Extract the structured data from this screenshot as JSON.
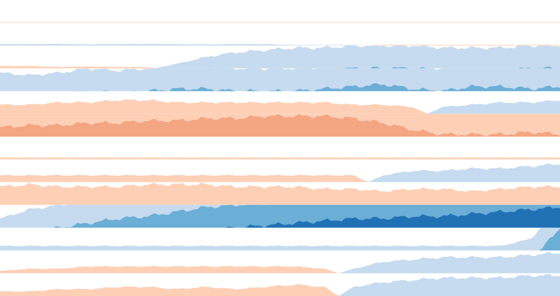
{
  "chart_data": {
    "type": "area",
    "variant": "horizon",
    "title": "",
    "xlabel": "",
    "ylabel": "",
    "bands": 3,
    "band_size": 1,
    "grid": false,
    "legend": "none",
    "colors": {
      "positive": [
        "#c6dbef",
        "#6baed6",
        "#2171b5"
      ],
      "negative": [
        "#fdd0b6",
        "#f4a582",
        "#d6604d"
      ]
    },
    "x_points": 20,
    "series": [
      {
        "values": [
          -0.03,
          -0.03,
          -0.03,
          -0.03,
          -0.03,
          -0.03,
          -0.03,
          -0.03,
          -0.03,
          -0.03,
          -0.03,
          -0.03,
          -0.03,
          -0.03,
          -0.03,
          -0.03,
          -0.03,
          -0.03,
          -0.03,
          -0.03
        ]
      },
      {
        "values": [
          0.06,
          0.06,
          0.07,
          0.05,
          0.06,
          0.07,
          0.06,
          0.05,
          0.06,
          0.06,
          0.02,
          0.02,
          0.02,
          -0.03,
          -0.03,
          -0.03,
          -0.03,
          -0.03,
          -0.03,
          -0.03
        ]
      },
      {
        "values": [
          -0.1,
          -0.1,
          -0.06,
          -0.08,
          -0.06,
          -0.06,
          0.2,
          0.5,
          0.7,
          0.8,
          0.9,
          0.9,
          1.0,
          1.0,
          1.0,
          0.9,
          0.9,
          0.9,
          1.0,
          1.0
        ]
      },
      {
        "values": [
          0.8,
          0.7,
          0.8,
          1.0,
          0.9,
          1.0,
          1.1,
          1.1,
          1.0,
          1.0,
          1.0,
          1.1,
          1.2,
          1.3,
          1.1,
          1.0,
          1.2,
          1.2,
          1.1,
          1.2
        ]
      },
      {
        "values": [
          -0.4,
          -0.4,
          -0.5,
          -0.5,
          -0.6,
          -0.6,
          -0.5,
          -0.5,
          -0.5,
          -0.5,
          -0.5,
          -0.5,
          -0.4,
          -0.4,
          -0.3,
          0.3,
          0.4,
          0.5,
          0.5,
          0.6
        ]
      },
      {
        "values": [
          -1.4,
          -1.5,
          -1.5,
          -1.6,
          -1.6,
          -1.7,
          -1.7,
          -1.8,
          -1.8,
          -1.9,
          -1.9,
          -1.9,
          -1.8,
          -1.6,
          -1.3,
          -1.1,
          -1.1,
          -1.1,
          -1.2,
          -1.1
        ]
      },
      {
        "values": [
          -0.08,
          -0.08,
          -0.08,
          -0.08,
          -0.08,
          -0.08,
          -0.08,
          -0.08,
          -0.08,
          -0.08,
          -0.08,
          -0.08,
          -0.08,
          -0.08,
          -0.08,
          -0.08,
          -0.08,
          -0.08,
          -0.08,
          -0.08
        ]
      },
      {
        "values": [
          -0.3,
          -0.3,
          -0.3,
          -0.3,
          -0.3,
          -0.3,
          -0.3,
          -0.3,
          -0.3,
          -0.3,
          -0.3,
          -0.3,
          -0.3,
          0.3,
          0.5,
          0.5,
          0.6,
          0.6,
          0.7,
          0.8
        ]
      },
      {
        "values": [
          -0.8,
          -0.9,
          -0.8,
          -0.8,
          -0.8,
          -0.9,
          -0.9,
          -0.9,
          -0.8,
          -0.8,
          -0.8,
          -0.7,
          -0.7,
          -0.6,
          -0.7,
          -0.7,
          -0.6,
          -0.7,
          -0.8,
          -0.8
        ]
      },
      {
        "values": [
          0.4,
          0.8,
          1.0,
          1.2,
          1.4,
          1.5,
          1.7,
          1.9,
          2.0,
          2.1,
          2.2,
          2.3,
          2.4,
          2.4,
          2.5,
          2.5,
          2.6,
          2.7,
          2.8,
          2.9
        ]
      },
      {
        "values": [
          0.2,
          0.2,
          0.2,
          0.2,
          0.2,
          0.2,
          0.2,
          0.2,
          0.2,
          0.2,
          0.2,
          0.2,
          0.2,
          0.2,
          0.2,
          0.2,
          0.2,
          0.2,
          0.5,
          2.0
        ]
      },
      {
        "values": [
          -0.1,
          -0.2,
          -0.2,
          -0.3,
          -0.3,
          -0.3,
          -0.3,
          -0.3,
          -0.3,
          -0.3,
          -0.3,
          -0.2,
          0.2,
          0.5,
          0.6,
          0.7,
          0.7,
          0.7,
          0.8,
          0.9
        ]
      },
      {
        "values": [
          -0.2,
          -0.2,
          -0.3,
          -0.3,
          -0.4,
          -0.4,
          -0.3,
          -0.4,
          -0.3,
          -0.4,
          -0.5,
          -0.4,
          0.4,
          0.6,
          0.7,
          0.8,
          0.8,
          0.8,
          0.9,
          0.9
        ]
      }
    ]
  }
}
